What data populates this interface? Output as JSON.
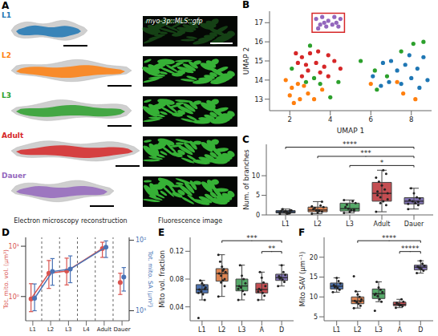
{
  "panel_a": {
    "panel": "A",
    "rows": [
      {
        "label": "L1",
        "color": "#1f77b4"
      },
      {
        "label": "L2",
        "color": "#ff7f0e"
      },
      {
        "label": "L3",
        "color": "#2ca02c"
      },
      {
        "label": "Adult",
        "color": "#d62728"
      },
      {
        "label": "Dauer",
        "color": "#9467bd"
      }
    ],
    "image_label": "myo-3p::MLS::gfp",
    "captions": [
      "Electron microscopy reconstruction",
      "Fluorescence image"
    ]
  },
  "chart_data": [
    {
      "panel": "B",
      "type": "scatter",
      "xlabel": "UMAP 1",
      "ylabel": "UMAP 2",
      "xlim": [
        1,
        9
      ],
      "ylim": [
        12.4,
        17.6
      ],
      "xticks": [
        2,
        4,
        6,
        8
      ],
      "yticks": [
        13,
        14,
        15,
        16,
        17
      ],
      "series": [
        {
          "color": "#1f77b4",
          "x": [
            6.1,
            6.5,
            6.9,
            7.3,
            7.7,
            8.0,
            8.3,
            8.6,
            7.0,
            6.6,
            7.9,
            8.4,
            7.5,
            8.8
          ],
          "values": [
            14.2,
            13.7,
            13.9,
            14.5,
            14.8,
            14.1,
            14.6,
            15.2,
            15.0,
            14.9,
            15.3,
            13.6,
            13.8,
            14.0
          ]
        },
        {
          "color": "#ff7f0e",
          "x": [
            1.8,
            2.1,
            2.4,
            2.0,
            2.5,
            2.9,
            3.2,
            2.2,
            3.6,
            2.7,
            7.3,
            7.6,
            8.2,
            6.0
          ],
          "values": [
            14.0,
            13.6,
            13.8,
            13.2,
            13.0,
            13.3,
            13.0,
            12.8,
            13.5,
            13.7,
            13.9,
            13.3,
            13.0,
            13.8
          ]
        },
        {
          "color": "#2ca02c",
          "x": [
            2.1,
            2.8,
            3.2,
            3.5,
            4.4,
            3.0,
            5.5,
            6.2,
            6.8,
            7.5,
            8.1,
            8.6,
            6.3,
            4.0
          ],
          "values": [
            14.6,
            13.9,
            14.1,
            13.8,
            13.9,
            15.8,
            15.0,
            14.5,
            14.2,
            15.5,
            15.9,
            16.0,
            13.5,
            13.1
          ]
        },
        {
          "color": "#d62728",
          "x": [
            2.3,
            2.6,
            3.0,
            3.4,
            3.9,
            2.4,
            2.8,
            3.3,
            3.7,
            4.2,
            2.9,
            3.5,
            3.9,
            2.6,
            4.5
          ],
          "values": [
            15.4,
            15.2,
            15.4,
            15.5,
            15.3,
            14.9,
            14.8,
            14.9,
            14.7,
            15.0,
            14.5,
            14.4,
            14.2,
            14.2,
            14.6
          ]
        },
        {
          "color": "#9467bd",
          "x": [
            3.3,
            3.6,
            3.9,
            4.2,
            4.5,
            3.5,
            3.8,
            4.1,
            4.4,
            3.7,
            4.3,
            3.4
          ],
          "values": [
            17.2,
            17.3,
            17.1,
            17.3,
            17.2,
            16.9,
            16.8,
            16.9,
            16.8,
            17.0,
            17.0,
            16.7
          ]
        }
      ],
      "highlight": {
        "x": [
          3.1,
          4.7
        ],
        "y": [
          16.5,
          17.5
        ],
        "color": "#d62728"
      }
    },
    {
      "panel": "C",
      "type": "box",
      "ylabel": "Num. of branches",
      "categories": [
        "L1",
        "L2",
        "L3",
        "Adult",
        "Dauer"
      ],
      "colors": [
        "#4c72b0",
        "#dd8452",
        "#55a868",
        "#c44e52",
        "#8172b3"
      ],
      "ylim": [
        0,
        18
      ],
      "yticks": [
        0,
        5,
        10
      ],
      "boxes": [
        {
          "whislo": 0.2,
          "q1": 0.5,
          "median": 0.8,
          "q3": 1.1,
          "whishi": 1.5
        },
        {
          "whislo": 0.3,
          "q1": 0.8,
          "median": 1.25,
          "q3": 2.0,
          "whishi": 3.4
        },
        {
          "whislo": 0.5,
          "q1": 1.0,
          "median": 1.6,
          "q3": 3.0,
          "whishi": 3.8
        },
        {
          "whislo": 0.8,
          "q1": 3.5,
          "median": 5.5,
          "q3": 8.3,
          "whishi": 11.4
        },
        {
          "whislo": 1.5,
          "q1": 2.8,
          "median": 3.5,
          "q3": 4.4,
          "whishi": 6.8
        }
      ],
      "points": [
        [
          0.2,
          0.5,
          0.7,
          0.8,
          1.0,
          1.2,
          0.4,
          0.9,
          1.5,
          0.6,
          1.1,
          0.3
        ],
        [
          0.3,
          0.8,
          1.0,
          1.2,
          1.5,
          2.0,
          2.4,
          0.6,
          1.8,
          2.2,
          3.4,
          1.1
        ],
        [
          0.5,
          1.0,
          1.2,
          1.6,
          2.0,
          3.0,
          3.5,
          0.8,
          2.6,
          3.8,
          1.4
        ],
        [
          0.8,
          2.5,
          3.5,
          4.5,
          5.0,
          5.5,
          6.5,
          7.5,
          8.5,
          9.5,
          10.5,
          11.4,
          3.0,
          6.0,
          4.0
        ],
        [
          1.5,
          2.5,
          3.0,
          3.5,
          3.8,
          4.2,
          4.5,
          5.5,
          6.8,
          2.8,
          3.3
        ]
      ],
      "significance": [
        {
          "from": "L1",
          "to": "Dauer",
          "label": "****"
        },
        {
          "from": "L2",
          "to": "Dauer",
          "label": "***"
        },
        {
          "from": "L3",
          "to": "Dauer",
          "label": "*"
        }
      ]
    },
    {
      "panel": "D",
      "type": "line",
      "log": "y",
      "categories": [
        "L1",
        "L2",
        "L3",
        "L4",
        "Adult",
        "Dauer"
      ],
      "ylabel": "Tot. mito. vol. (μm³)",
      "y2label": "Tot. mito. SA (μm²)",
      "ylim": [
        0.33,
        15
      ],
      "yticks": [
        {
          "value": 1,
          "label": "10⁰"
        },
        {
          "value": 10,
          "label": "10¹"
        }
      ],
      "y2lim": [
        7.2,
        110
      ],
      "y2ticks": [
        {
          "value": 10,
          "label": "10¹"
        },
        {
          "value": 100,
          "label": "10²"
        }
      ],
      "series": [
        {
          "type": "line",
          "axis": "y",
          "color": "#d9534f",
          "x": [
            "L1",
            "L2",
            "L3",
            "Adult"
          ],
          "values": [
            0.9,
            2.9,
            3.2,
            9.0
          ],
          "error_range": [
            [
              0.5,
              1.8
            ],
            [
              1.45,
              5.2
            ],
            [
              1.7,
              5.8
            ],
            [
              6.0,
              12.0
            ]
          ]
        },
        {
          "type": "scatter",
          "axis": "y",
          "color": "#d9534f",
          "x": [
            "Dauer"
          ],
          "values": [
            1.9
          ],
          "error_range": [
            [
              1.1,
              2.9
            ]
          ]
        },
        {
          "type": "line",
          "axis": "y2",
          "color": "#4a73b5",
          "x": [
            "L1",
            "L2",
            "L3",
            "Adult"
          ],
          "values": [
            15,
            36,
            39,
            80
          ],
          "error_range": [
            [
              10,
              24
            ],
            [
              23,
              55
            ],
            [
              25,
              60
            ],
            [
              57,
              98
            ]
          ]
        },
        {
          "type": "scatter",
          "axis": "y2",
          "color": "#4a73b5",
          "x": [
            "Dauer"
          ],
          "values": [
            30
          ],
          "error_range": [
            [
              19,
              41
            ]
          ]
        }
      ]
    },
    {
      "panel": "E",
      "type": "box",
      "ylabel": "Mito vol. fraction",
      "categories": [
        "L1",
        "L2",
        "L3",
        "A",
        "D"
      ],
      "colors": [
        "#4c72b0",
        "#dd8452",
        "#55a868",
        "#c44e52",
        "#8172b3"
      ],
      "ylim": [
        0.02,
        0.14
      ],
      "yticks": [
        0.04,
        0.08,
        0.12
      ],
      "boxes": [
        {
          "whislo": 0.05,
          "q1": 0.06,
          "median": 0.065,
          "q3": 0.072,
          "whishi": 0.078
        },
        {
          "whislo": 0.055,
          "q1": 0.077,
          "median": 0.088,
          "q3": 0.095,
          "whishi": 0.115
        },
        {
          "whislo": 0.05,
          "q1": 0.063,
          "median": 0.07,
          "q3": 0.08,
          "whishi": 0.1
        },
        {
          "whislo": 0.05,
          "q1": 0.06,
          "median": 0.065,
          "q3": 0.074,
          "whishi": 0.09
        },
        {
          "whislo": 0.07,
          "q1": 0.078,
          "median": 0.082,
          "q3": 0.087,
          "whishi": 0.1
        }
      ],
      "points": [
        [
          0.024,
          0.05,
          0.058,
          0.062,
          0.065,
          0.068,
          0.071,
          0.074,
          0.078,
          0.06,
          0.066
        ],
        [
          0.055,
          0.07,
          0.078,
          0.085,
          0.088,
          0.09,
          0.094,
          0.098,
          0.105,
          0.115,
          0.08,
          0.092,
          0.075
        ],
        [
          0.05,
          0.058,
          0.063,
          0.068,
          0.07,
          0.074,
          0.08,
          0.085,
          0.1,
          0.066
        ],
        [
          0.05,
          0.056,
          0.06,
          0.064,
          0.066,
          0.07,
          0.075,
          0.082,
          0.09,
          0.062
        ],
        [
          0.07,
          0.076,
          0.079,
          0.082,
          0.084,
          0.086,
          0.09,
          0.1,
          0.081
        ]
      ],
      "significance": [
        {
          "from": "L2",
          "to": "D",
          "label": "***"
        },
        {
          "from": "A",
          "to": "D",
          "label": "**"
        }
      ]
    },
    {
      "panel": "F",
      "type": "box",
      "ylabel": "Mito SAV (μm⁻¹)",
      "categories": [
        "L1",
        "L2",
        "L3",
        "A",
        "D"
      ],
      "colors": [
        "#4c72b0",
        "#dd8452",
        "#55a868",
        "#c44e52",
        "#8172b3"
      ],
      "ylim": [
        4,
        25
      ],
      "yticks": [
        5,
        10,
        15,
        20
      ],
      "boxes": [
        {
          "whislo": 11.2,
          "q1": 12.0,
          "median": 12.7,
          "q3": 13.5,
          "whishi": 14.8
        },
        {
          "whislo": 7.2,
          "q1": 8.3,
          "median": 9.0,
          "q3": 10.0,
          "whishi": 11.4
        },
        {
          "whislo": 8.8,
          "q1": 9.6,
          "median": 10.8,
          "q3": 12.0,
          "whishi": 13.8
        },
        {
          "whislo": 7.3,
          "q1": 7.8,
          "median": 8.1,
          "q3": 8.7,
          "whishi": 9.4
        },
        {
          "whislo": 16.0,
          "q1": 16.8,
          "median": 17.5,
          "q3": 18.0,
          "whishi": 19.1
        }
      ],
      "points": [
        [
          11.2,
          11.8,
          12.3,
          12.7,
          13.0,
          13.4,
          14.0,
          14.8,
          12.5
        ],
        [
          7.2,
          7.8,
          8.3,
          8.7,
          9.0,
          9.4,
          10.0,
          10.6,
          11.4,
          15.2,
          8.9
        ],
        [
          6.5,
          8.8,
          9.4,
          10.2,
          10.8,
          11.2,
          11.8,
          12.4,
          13.8,
          10.5
        ],
        [
          7.3,
          7.7,
          8.0,
          8.2,
          8.5,
          8.8,
          9.4,
          7.9
        ],
        [
          16.0,
          16.6,
          17.0,
          17.3,
          17.6,
          17.9,
          18.4,
          19.1,
          17.5
        ]
      ],
      "significance": [
        {
          "from": "L2",
          "to": "D",
          "label": "****"
        },
        {
          "from": "A",
          "to": "D",
          "label": "*****"
        }
      ]
    }
  ]
}
